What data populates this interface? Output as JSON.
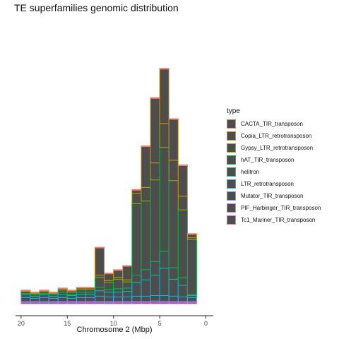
{
  "chart_data": {
    "type": "bar",
    "stacked": true,
    "title": "TE superfamilies genomic distribution",
    "xlabel": "Chromosome 2 (Mbp)",
    "ylabel": "",
    "x_reversed": true,
    "xlim": [
      20.6,
      -0.8
    ],
    "xticks": [
      20,
      15,
      10,
      5,
      0
    ],
    "xtick_labels": [
      "20",
      "15",
      "10",
      "5",
      "0"
    ],
    "bin_width": 1,
    "bin_centers": [
      19.5,
      18.5,
      17.5,
      16.5,
      15.5,
      14.5,
      13.5,
      12.5,
      11.5,
      10.5,
      9.5,
      8.5,
      7.5,
      6.5,
      5.5,
      4.5,
      3.5,
      2.5,
      1.5
    ],
    "ylim": [
      0,
      405
    ],
    "grid": false,
    "legend_title": "type",
    "legend_position": "right",
    "fill_color": "#4d4d4d",
    "series": [
      {
        "name": "Tc1_Mariner_TIR_transposon",
        "color": "#FF61C3",
        "values": [
          2,
          2,
          2,
          2,
          2,
          2,
          2,
          2,
          2,
          2,
          2,
          2,
          2,
          2,
          2,
          2,
          2,
          2,
          2
        ]
      },
      {
        "name": "PIF_Harbinger_TIR_transposon",
        "color": "#DB72FB",
        "values": [
          1,
          1,
          1,
          1,
          1,
          1,
          1,
          1,
          1,
          1,
          1,
          1,
          1,
          1,
          2,
          1,
          1,
          1,
          1
        ]
      },
      {
        "name": "Mutator_TIR_transposon",
        "color": "#619CFF",
        "values": [
          6,
          5,
          6,
          5,
          6,
          5,
          6,
          6,
          8,
          7,
          7,
          7,
          8,
          8,
          8,
          9,
          8,
          7,
          6
        ]
      },
      {
        "name": "LTR_retrotransposon",
        "color": "#00B9E3",
        "values": [
          4,
          3,
          4,
          3,
          5,
          4,
          5,
          5,
          8,
          7,
          7,
          8,
          20,
          24,
          30,
          40,
          25,
          17,
          3
        ]
      },
      {
        "name": "helitron",
        "color": "#00C19F",
        "values": [
          2,
          2,
          2,
          2,
          3,
          2,
          3,
          3,
          5,
          4,
          5,
          5,
          11,
          15,
          20,
          25,
          17,
          11,
          2
        ]
      },
      {
        "name": "hAT_TIR_transposon",
        "color": "#00BA38",
        "values": [
          3,
          2,
          3,
          2,
          3,
          3,
          4,
          4,
          15,
          10,
          14,
          9,
          105,
          101,
          120,
          153,
          128,
          100,
          80
        ]
      },
      {
        "name": "Gypsy_LTR_retrotransposon",
        "color": "#93AA00",
        "values": [
          1,
          1,
          1,
          1,
          2,
          2,
          2,
          2,
          3,
          3,
          3,
          3,
          15,
          20,
          25,
          35,
          30,
          20,
          3
        ]
      },
      {
        "name": "Copia_LTR_retrotransposon",
        "color": "#D39200",
        "values": [
          0,
          0,
          0,
          0,
          0,
          0,
          0,
          0,
          40,
          10,
          10,
          20,
          5,
          60,
          95,
          80,
          60,
          45,
          5
        ]
      },
      {
        "name": "CACTA_TIR_transposon",
        "color": "#F8766D",
        "values": [
          1,
          1,
          1,
          1,
          1,
          1,
          1,
          1,
          1,
          1,
          1,
          1,
          1,
          1,
          1,
          1,
          1,
          1,
          1
        ]
      }
    ]
  }
}
